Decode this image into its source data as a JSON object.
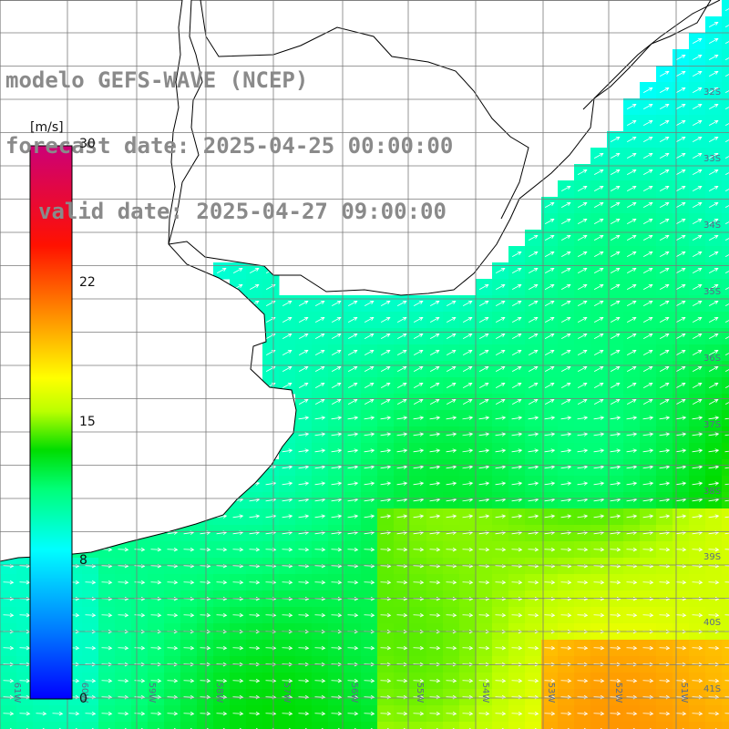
{
  "title": {
    "line1": "modelo GEFS-WAVE (NCEP)",
    "line2": "forecast date: 2025-04-25 00:00:00",
    "line3": "valid date: 2025-04-27 09:00:00"
  },
  "colorbar": {
    "unit": "[m/s]",
    "ticks": [
      "30",
      "22",
      "15",
      "8",
      "0"
    ],
    "colors": [
      "#0000ff",
      "#00aaff",
      "#00ffff",
      "#00ff7f",
      "#00dd00",
      "#aaff00",
      "#ffff00",
      "#ff9900",
      "#ff3300",
      "#ff0000",
      "#cc0066"
    ]
  },
  "map": {
    "lat_labels": [
      "32S",
      "33S",
      "34S",
      "35S",
      "36S",
      "37S",
      "38S",
      "39S",
      "40S",
      "41S"
    ],
    "lon_labels": [
      "61W",
      "60W",
      "59W",
      "58W",
      "57W",
      "56W",
      "55W",
      "54W",
      "53W",
      "52W",
      "51W"
    ],
    "grid": "on",
    "arrow_color": "#ffffff",
    "coast_color": "#000000",
    "land_color": "#ffffff"
  }
}
